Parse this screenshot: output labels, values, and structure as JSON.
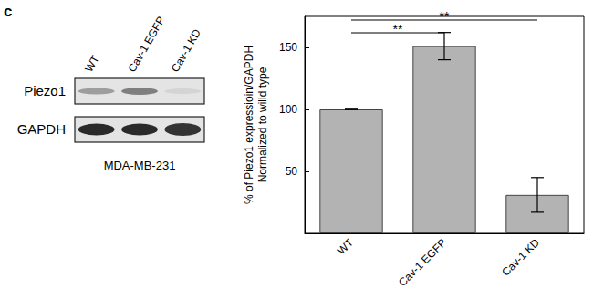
{
  "panel_label": "c",
  "blot": {
    "rows": [
      "Piezo1",
      "GAPDH"
    ],
    "lanes": [
      "WT",
      "Cav-1 EGFP",
      "Cav-1 KD"
    ],
    "cell_line": "MDA-MB-231"
  },
  "chart_data": {
    "type": "bar",
    "y_label": "% of Piezo1 expressioin/GAPDH\nNormalized to willd type",
    "categories": [
      "WT",
      "Cav-1 EGFP",
      "Cav-1 KD"
    ],
    "values": [
      100,
      151,
      31
    ],
    "errors": [
      0,
      11,
      14
    ],
    "color": "#b3b3b3",
    "ylim": [
      0,
      175
    ],
    "yticks": [
      50,
      100,
      150
    ],
    "grid": false,
    "annotations": [
      {
        "from": "WT",
        "to": "Cav-1 KD",
        "text": "**"
      },
      {
        "from": "WT",
        "to": "Cav-1 EGFP",
        "text": "**"
      }
    ]
  }
}
